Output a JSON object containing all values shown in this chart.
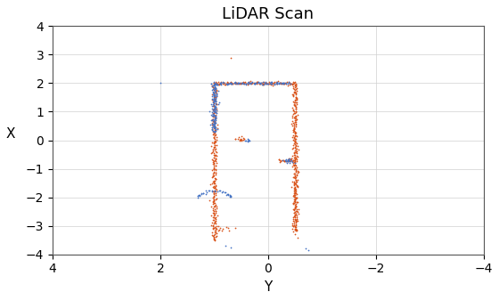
{
  "title": "LiDAR Scan",
  "xlabel": "Y",
  "ylabel": "X",
  "xlim": [
    4,
    -4
  ],
  "ylim": [
    -4,
    4
  ],
  "xticks": [
    4,
    2,
    0,
    -2,
    -4
  ],
  "yticks": [
    -4,
    -3,
    -2,
    -1,
    0,
    1,
    2,
    3,
    4
  ],
  "grid": true,
  "bg_color": "#ffffff",
  "blue_color": "#4472c4",
  "orange_color": "#d95319",
  "marker_size": 2.5
}
